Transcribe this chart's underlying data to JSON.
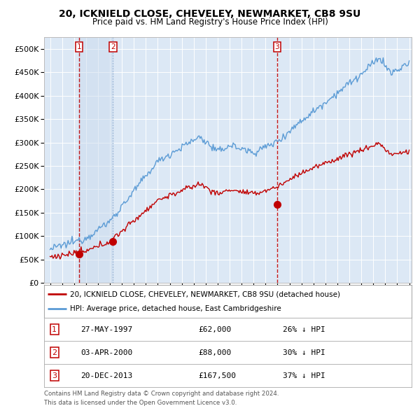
{
  "title": "20, ICKNIELD CLOSE, CHEVELEY, NEWMARKET, CB8 9SU",
  "subtitle": "Price paid vs. HM Land Registry's House Price Index (HPI)",
  "legend_line1": "20, ICKNIELD CLOSE, CHEVELEY, NEWMARKET, CB8 9SU (detached house)",
  "legend_line2": "HPI: Average price, detached house, East Cambridgeshire",
  "footer1": "Contains HM Land Registry data © Crown copyright and database right 2024.",
  "footer2": "This data is licensed under the Open Government Licence v3.0.",
  "sales": [
    {
      "num": 1,
      "date": "27-MAY-1997",
      "price": 62000,
      "pct": "26% ↓ HPI",
      "year": 1997.41
    },
    {
      "num": 2,
      "date": "03-APR-2000",
      "price": 88000,
      "pct": "30% ↓ HPI",
      "year": 2000.25
    },
    {
      "num": 3,
      "date": "20-DEC-2013",
      "price": 167500,
      "pct": "37% ↓ HPI",
      "year": 2013.97
    }
  ],
  "hpi_color": "#5b9bd5",
  "price_color": "#c00000",
  "sale_marker_color": "#c00000",
  "vline_color": "#c00000",
  "vline2_color": "#9bafc7",
  "bg_color": "#ffffff",
  "plot_bg": "#dce8f5",
  "ylim": [
    0,
    525000
  ],
  "yticks": [
    0,
    50000,
    100000,
    150000,
    200000,
    250000,
    300000,
    350000,
    400000,
    450000,
    500000
  ],
  "xlim_start": 1994.5,
  "xlim_end": 2025.2
}
